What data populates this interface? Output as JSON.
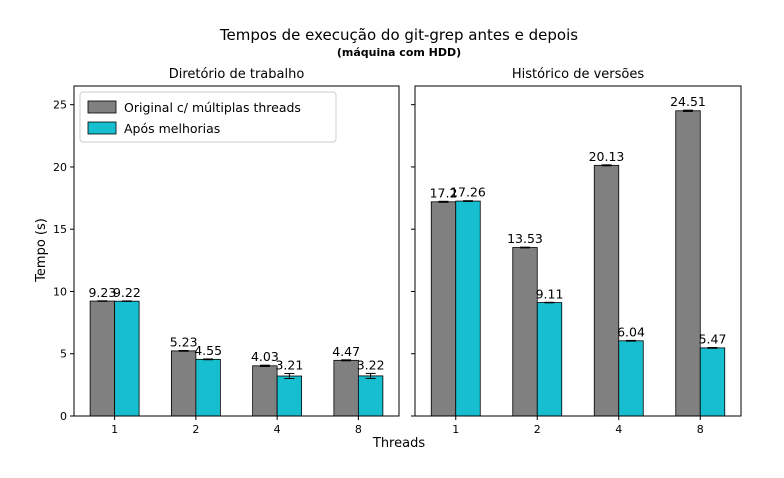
{
  "chart_data": {
    "type": "bar",
    "title": "Tempos de execução do git-grep antes e depois",
    "subtitle": "(máquina com HDD)",
    "xlabel": "Threads",
    "ylabel": "Tempo (s)",
    "ylim": [
      0,
      26.5
    ],
    "yticks": [
      "0",
      "5",
      "10",
      "15",
      "20",
      "25"
    ],
    "legend_position": "top-left",
    "colors": {
      "original": "#808080",
      "improved": "#17becf",
      "edge": "#000000"
    },
    "panels": [
      {
        "title": "Diretório de trabalho",
        "categories": [
          "1",
          "2",
          "4",
          "8"
        ],
        "series": [
          {
            "name": "Original c/ múltiplas threads",
            "values": [
              9.23,
              5.23,
              4.03,
              4.47
            ],
            "labels": [
              "9.23",
              "5.23",
              "4.03",
              "4.47"
            ],
            "errors": [
              0.02,
              0.03,
              0.05,
              0.04
            ]
          },
          {
            "name": "Após melhorias",
            "values": [
              9.22,
              4.55,
              3.21,
              3.22
            ],
            "labels": [
              "9.22",
              "4.55",
              "3.21",
              "3.22"
            ],
            "errors": [
              0.02,
              0.03,
              0.2,
              0.2
            ]
          }
        ]
      },
      {
        "title": "Histórico de versões",
        "categories": [
          "1",
          "2",
          "4",
          "8"
        ],
        "series": [
          {
            "name": "Original c/ múltiplas threads",
            "values": [
              17.2,
              13.53,
              20.13,
              24.51
            ],
            "labels": [
              "17.2",
              "13.53",
              "20.13",
              "24.51"
            ],
            "errors": [
              0.04,
              0.03,
              0.04,
              0.05
            ]
          },
          {
            "name": "Após melhorias",
            "values": [
              17.26,
              9.11,
              6.04,
              5.47
            ],
            "labels": [
              "17.26",
              "9.11",
              "6.04",
              "5.47"
            ],
            "errors": [
              0.03,
              0.02,
              0.03,
              0.03
            ]
          }
        ]
      }
    ]
  }
}
